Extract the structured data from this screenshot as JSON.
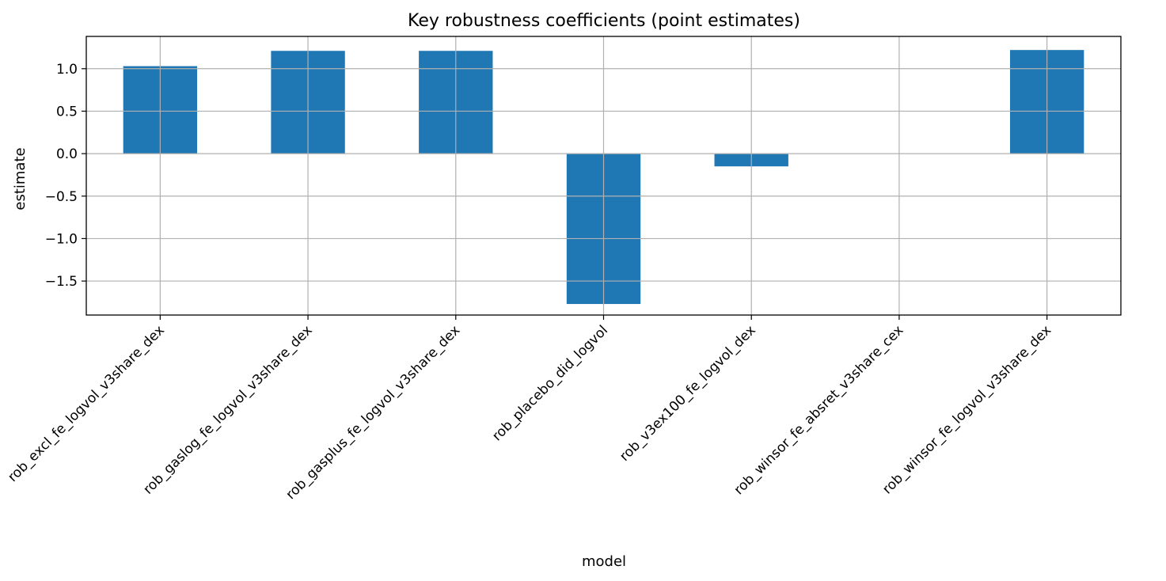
{
  "chart_data": {
    "type": "bar",
    "title": "Key robustness coefficients (point estimates)",
    "xlabel": "model",
    "ylabel": "estimate",
    "categories": [
      "rob_excl_fe_logvol_v3share_dex",
      "rob_gaslog_fe_logvol_v3share_dex",
      "rob_gasplus_fe_logvol_v3share_dex",
      "rob_placebo_did_logvol",
      "rob_v3ex100_fe_logvol_dex",
      "rob_winsor_fe_absret_v3share_cex",
      "rob_winsor_fe_logvol_v3share_dex"
    ],
    "values": [
      1.03,
      1.21,
      1.21,
      -1.77,
      -0.15,
      0.0,
      1.22
    ],
    "ylim": [
      -1.9,
      1.38
    ],
    "yticks": [
      1.0,
      0.5,
      0.0,
      -0.5,
      -1.0,
      -1.5
    ],
    "ytick_labels": [
      "1.0",
      "0.5",
      "0.0",
      "−0.5",
      "−1.0",
      "−1.5"
    ],
    "grid": true,
    "bar_color": "#1f77b4",
    "grid_color": "#b0b0b0"
  }
}
